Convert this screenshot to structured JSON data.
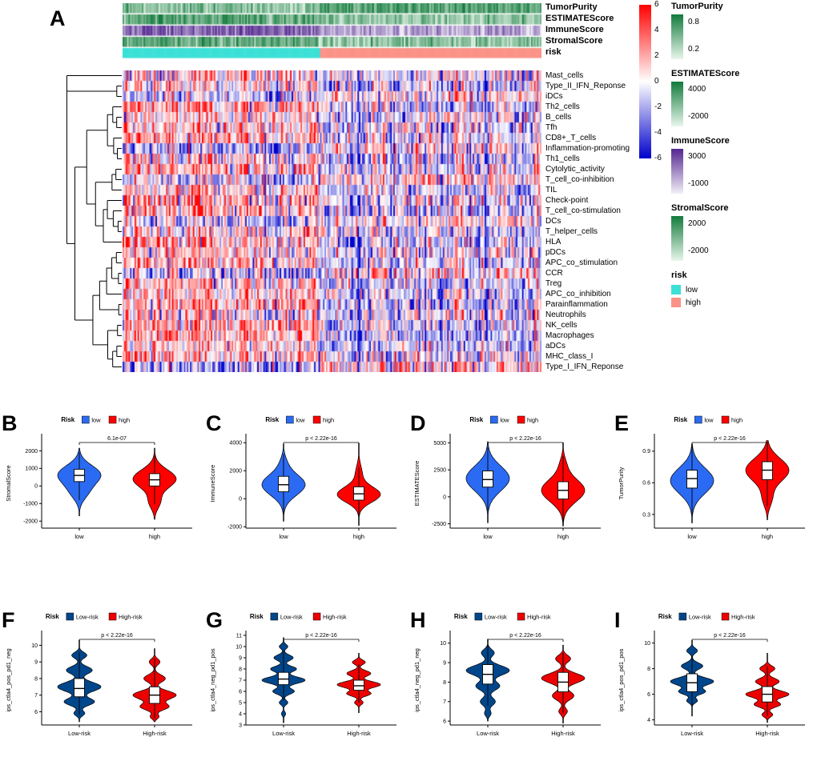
{
  "chart_data": [
    {
      "panel": "A",
      "type": "heatmap",
      "rows": [
        "Mast_cells",
        "Type_II_IFN_Reponse",
        "iDCs",
        "Th2_cells",
        "B_cells",
        "Tfh",
        "CD8+_T_cells",
        "Inflammation-promoting",
        "Th1_cells",
        "Cytolytic_activity",
        "T_cell_co-inhibition",
        "TIL",
        "Check-point",
        "T_cell_co-stimulation",
        "DCs",
        "T_helper_cells",
        "HLA",
        "pDCs",
        "APC_co_stimulation",
        "CCR",
        "Treg",
        "APC_co_inhibition",
        "Parainflammation",
        "Neutrophils",
        "NK_cells",
        "Macrophages",
        "aDCs",
        "MHC_class_I",
        "Type_I_IFN_Reponse"
      ],
      "annotation_rows": [
        "TumorPurity",
        "ESTIMATEScore",
        "ImmuneScore",
        "StromalScore",
        "risk"
      ],
      "value_scale": {
        "min": -6,
        "max": 6,
        "ticks": [
          6,
          4,
          2,
          0,
          -2,
          -4,
          -6
        ],
        "colors": {
          "high": "#FF0000",
          "mid": "#FFFFFF",
          "low": "#0000CC"
        }
      },
      "risk_split": 0.47,
      "risk_colors": {
        "low": "#3BE0D6",
        "high": "#FB9287"
      },
      "legends": [
        {
          "title": "TumorPurity",
          "type": "gradient",
          "labels": [
            "0.8",
            "0.2"
          ],
          "colors": [
            "#137B3C",
            "#E8F6EC"
          ]
        },
        {
          "title": "ESTIMATEScore",
          "type": "gradient",
          "labels": [
            "4000",
            "-2000"
          ],
          "colors": [
            "#137B3C",
            "#E8F6EC"
          ]
        },
        {
          "title": "ImmuneScore",
          "type": "gradient",
          "labels": [
            "3000",
            "-1000"
          ],
          "colors": [
            "#54278F",
            "#F1EFF8"
          ]
        },
        {
          "title": "StromalScore",
          "type": "gradient",
          "labels": [
            "2000",
            "-2000"
          ],
          "colors": [
            "#137B3C",
            "#E8F6EC"
          ]
        },
        {
          "title": "risk",
          "type": "categorical",
          "items": [
            {
              "label": "low",
              "color": "#3BE0D6"
            },
            {
              "label": "high",
              "color": "#FB9287"
            }
          ]
        }
      ]
    },
    {
      "panel": "B",
      "type": "violin",
      "ylabel": "StromalScore",
      "categories": [
        "low",
        "high"
      ],
      "p_label": "6.1e-07",
      "ylim": [
        -2400,
        2700
      ],
      "yticks": [
        2000,
        1000,
        0,
        -1000,
        -2000
      ],
      "legend": {
        "title": "Risk",
        "items": [
          {
            "label": "low",
            "color": "#2B6BF3"
          },
          {
            "label": "high",
            "color": "#FF0000"
          }
        ]
      },
      "series": [
        {
          "name": "low",
          "color": "#2B6BF3",
          "range": [
            -1700,
            2150
          ],
          "bumps": [
            {
              "c": 650,
              "s": 520,
              "w": 1
            },
            {
              "c": -350,
              "s": 450,
              "w": 0.35
            }
          ],
          "box": {
            "q1": 250,
            "med": 600,
            "q3": 950,
            "wlo": -800,
            "whi": 1950
          }
        },
        {
          "name": "high",
          "color": "#FF0000",
          "range": [
            -1900,
            2150
          ],
          "bumps": [
            {
              "c": 400,
              "s": 520,
              "w": 1
            },
            {
              "c": -900,
              "s": 400,
              "w": 0.25
            }
          ],
          "box": {
            "q1": 0,
            "med": 350,
            "q3": 700,
            "wlo": -1050,
            "whi": 1750
          }
        }
      ]
    },
    {
      "panel": "C",
      "type": "violin",
      "ylabel": "ImmuneScore",
      "categories": [
        "low",
        "high"
      ],
      "p_label": "p < 2.22e-16",
      "ylim": [
        -2100,
        4300
      ],
      "yticks": [
        4000,
        2000,
        0,
        -2000
      ],
      "legend": {
        "title": "Risk",
        "items": [
          {
            "label": "low",
            "color": "#2B6BF3"
          },
          {
            "label": "high",
            "color": "#FF0000"
          }
        ]
      },
      "series": [
        {
          "name": "low",
          "color": "#2B6BF3",
          "range": [
            -1600,
            3900
          ],
          "bumps": [
            {
              "c": 1000,
              "s": 750,
              "w": 1
            },
            {
              "c": 2600,
              "s": 500,
              "w": 0.1
            }
          ],
          "box": {
            "q1": 500,
            "med": 1000,
            "q3": 1600,
            "wlo": -1100,
            "whi": 3200
          }
        },
        {
          "name": "high",
          "color": "#FF0000",
          "range": [
            -1900,
            3950
          ],
          "bumps": [
            {
              "c": 300,
              "s": 550,
              "w": 1
            },
            {
              "c": 1800,
              "s": 600,
              "w": 0.15
            }
          ],
          "box": {
            "q1": -100,
            "med": 350,
            "q3": 850,
            "wlo": -1500,
            "whi": 2250
          }
        }
      ]
    },
    {
      "panel": "D",
      "type": "violin",
      "ylabel": "ESTIMATEScore",
      "categories": [
        "low",
        "high"
      ],
      "p_label": "p < 2.22e-16",
      "ylim": [
        -2900,
        5400
      ],
      "yticks": [
        5000,
        2500,
        0,
        -2500
      ],
      "legend": {
        "title": "Risk",
        "items": [
          {
            "label": "low",
            "color": "#2B6BF3"
          },
          {
            "label": "high",
            "color": "#FF0000"
          }
        ]
      },
      "series": [
        {
          "name": "low",
          "color": "#2B6BF3",
          "range": [
            -2400,
            5100
          ],
          "bumps": [
            {
              "c": 1700,
              "s": 1150,
              "w": 1
            }
          ],
          "box": {
            "q1": 900,
            "med": 1600,
            "q3": 2400,
            "wlo": -1300,
            "whi": 4600
          }
        },
        {
          "name": "high",
          "color": "#FF0000",
          "range": [
            -2700,
            5000
          ],
          "bumps": [
            {
              "c": 600,
              "s": 1050,
              "w": 1
            },
            {
              "c": 3000,
              "s": 700,
              "w": 0.12
            }
          ],
          "box": {
            "q1": -200,
            "med": 600,
            "q3": 1400,
            "wlo": -2500,
            "whi": 3800
          }
        }
      ]
    },
    {
      "panel": "E",
      "type": "violin",
      "ylabel": "TumorPurity",
      "categories": [
        "low",
        "high"
      ],
      "p_label": "p < 2.22e-16",
      "ylim": [
        0.17,
        1.02
      ],
      "yticks": [
        0.9,
        0.6,
        0.3
      ],
      "legend": {
        "title": "Risk",
        "items": [
          {
            "label": "low",
            "color": "#2B6BF3"
          },
          {
            "label": "high",
            "color": "#FF0000"
          }
        ]
      },
      "series": [
        {
          "name": "low",
          "color": "#2B6BF3",
          "range": [
            0.22,
            0.97
          ],
          "bumps": [
            {
              "c": 0.62,
              "s": 0.12,
              "w": 1
            }
          ],
          "box": {
            "q1": 0.55,
            "med": 0.64,
            "q3": 0.72,
            "wlo": 0.3,
            "whi": 0.95
          }
        },
        {
          "name": "high",
          "color": "#FF0000",
          "range": [
            0.25,
            1.0
          ],
          "bumps": [
            {
              "c": 0.72,
              "s": 0.11,
              "w": 1
            },
            {
              "c": 0.45,
              "s": 0.08,
              "w": 0.2
            }
          ],
          "box": {
            "q1": 0.63,
            "med": 0.72,
            "q3": 0.8,
            "wlo": 0.38,
            "whi": 0.99
          }
        }
      ]
    },
    {
      "panel": "F",
      "type": "violin",
      "ylabel": "ips_ctla4_pos_pd1_neg",
      "categories": [
        "Low-risk",
        "High-risk"
      ],
      "p_label": "p < 2.22e-16",
      "ylim": [
        5.2,
        10.6
      ],
      "yticks": [
        10,
        9,
        8,
        7,
        6
      ],
      "legend": {
        "title": "Risk",
        "items": [
          {
            "label": "Low-risk",
            "color": "#00468B"
          },
          {
            "label": "High-risk",
            "color": "#ED0000"
          }
        ]
      },
      "series": [
        {
          "name": "Low-risk",
          "color": "#00468B",
          "range": [
            5.4,
            10.3
          ],
          "bumps": [
            {
              "c": 9.4,
              "s": 0.18,
              "w": 0.35
            },
            {
              "c": 8.5,
              "s": 0.22,
              "w": 0.6
            },
            {
              "c": 7.5,
              "s": 0.28,
              "w": 1
            },
            {
              "c": 6.6,
              "s": 0.22,
              "w": 0.7
            },
            {
              "c": 5.9,
              "s": 0.15,
              "w": 0.25
            }
          ],
          "box": {
            "q1": 6.9,
            "med": 7.4,
            "q3": 8.0,
            "wlo": 5.8,
            "whi": 9.6
          }
        },
        {
          "name": "High-risk",
          "color": "#ED0000",
          "range": [
            5.4,
            9.8
          ],
          "bumps": [
            {
              "c": 9.0,
              "s": 0.18,
              "w": 0.25
            },
            {
              "c": 8.0,
              "s": 0.22,
              "w": 0.5
            },
            {
              "c": 7.0,
              "s": 0.26,
              "w": 1
            },
            {
              "c": 6.3,
              "s": 0.2,
              "w": 0.65
            },
            {
              "c": 5.7,
              "s": 0.14,
              "w": 0.2
            }
          ],
          "box": {
            "q1": 6.5,
            "med": 7.0,
            "q3": 7.5,
            "wlo": 5.6,
            "whi": 9.2
          }
        }
      ]
    },
    {
      "panel": "G",
      "type": "violin",
      "ylabel": "ips_ctla4_neg_pd1_pos",
      "categories": [
        "Low-risk",
        "High-risk"
      ],
      "p_label": "p < 2.22e-16",
      "ylim": [
        3,
        11
      ],
      "yticks": [
        11,
        10,
        9,
        8,
        7,
        6,
        5,
        4,
        3
      ],
      "legend": {
        "title": "Risk",
        "items": [
          {
            "label": "Low-risk",
            "color": "#00468B"
          },
          {
            "label": "High-risk",
            "color": "#ED0000"
          }
        ]
      },
      "series": [
        {
          "name": "Low-risk",
          "color": "#00468B",
          "range": [
            3.2,
            10.8
          ],
          "bumps": [
            {
              "c": 10,
              "s": 0.2,
              "w": 0.2
            },
            {
              "c": 9,
              "s": 0.25,
              "w": 0.45
            },
            {
              "c": 8,
              "s": 0.25,
              "w": 0.6
            },
            {
              "c": 7,
              "s": 0.3,
              "w": 1
            },
            {
              "c": 6,
              "s": 0.25,
              "w": 0.5
            },
            {
              "c": 5,
              "s": 0.2,
              "w": 0.2
            },
            {
              "c": 4,
              "s": 0.18,
              "w": 0.1
            }
          ],
          "box": {
            "q1": 6.6,
            "med": 7.1,
            "q3": 7.7,
            "wlo": 5.2,
            "whi": 9.7
          }
        },
        {
          "name": "High-risk",
          "color": "#ED0000",
          "range": [
            4.1,
            9.4
          ],
          "bumps": [
            {
              "c": 8.6,
              "s": 0.2,
              "w": 0.3
            },
            {
              "c": 7.6,
              "s": 0.25,
              "w": 0.55
            },
            {
              "c": 6.6,
              "s": 0.28,
              "w": 1
            },
            {
              "c": 5.8,
              "s": 0.22,
              "w": 0.55
            },
            {
              "c": 5.0,
              "s": 0.18,
              "w": 0.2
            }
          ],
          "box": {
            "q1": 6.1,
            "med": 6.5,
            "q3": 7.0,
            "wlo": 5.0,
            "whi": 8.4
          }
        }
      ]
    },
    {
      "panel": "H",
      "type": "violin",
      "ylabel": "ips_ctla4_neg_pd1_neg",
      "categories": [
        "Low-risk",
        "High-risk"
      ],
      "p_label": "p < 2.22e-16",
      "ylim": [
        5.8,
        10.4
      ],
      "yticks": [
        10,
        9,
        8,
        7,
        6
      ],
      "legend": {
        "title": "Risk",
        "items": [
          {
            "label": "Low-risk",
            "color": "#00468B"
          },
          {
            "label": "High-risk",
            "color": "#ED0000"
          }
        ]
      },
      "series": [
        {
          "name": "Low-risk",
          "color": "#00468B",
          "range": [
            6.0,
            10.2
          ],
          "bumps": [
            {
              "c": 9.5,
              "s": 0.18,
              "w": 0.3
            },
            {
              "c": 8.6,
              "s": 0.25,
              "w": 1
            },
            {
              "c": 7.8,
              "s": 0.22,
              "w": 0.55
            },
            {
              "c": 7.0,
              "s": 0.2,
              "w": 0.35
            },
            {
              "c": 6.4,
              "s": 0.15,
              "w": 0.15
            }
          ],
          "box": {
            "q1": 7.9,
            "med": 8.4,
            "q3": 8.9,
            "wlo": 6.8,
            "whi": 9.9
          }
        },
        {
          "name": "High-risk",
          "color": "#ED0000",
          "range": [
            5.9,
            9.9
          ],
          "bumps": [
            {
              "c": 9.2,
              "s": 0.18,
              "w": 0.35
            },
            {
              "c": 8.2,
              "s": 0.25,
              "w": 1
            },
            {
              "c": 7.3,
              "s": 0.22,
              "w": 0.5
            },
            {
              "c": 6.5,
              "s": 0.16,
              "w": 0.2
            }
          ],
          "box": {
            "q1": 7.5,
            "med": 8.0,
            "q3": 8.5,
            "wlo": 6.4,
            "whi": 9.5
          }
        }
      ]
    },
    {
      "panel": "I",
      "type": "violin",
      "ylabel": "ips_ctla4_pos_pd1_pos",
      "categories": [
        "Low-risk",
        "High-risk"
      ],
      "p_label": "p < 2.22e-16",
      "ylim": [
        3.6,
        10.6
      ],
      "yticks": [
        10,
        8,
        6,
        4
      ],
      "legend": {
        "title": "Risk",
        "items": [
          {
            "label": "Low-risk",
            "color": "#00468B"
          },
          {
            "label": "High-risk",
            "color": "#ED0000"
          }
        ]
      },
      "series": [
        {
          "name": "Low-risk",
          "color": "#00468B",
          "range": [
            4.3,
            10.2
          ],
          "bumps": [
            {
              "c": 9.4,
              "s": 0.2,
              "w": 0.25
            },
            {
              "c": 8.2,
              "s": 0.25,
              "w": 0.5
            },
            {
              "c": 7.0,
              "s": 0.3,
              "w": 1
            },
            {
              "c": 6.2,
              "s": 0.22,
              "w": 0.6
            },
            {
              "c": 5.5,
              "s": 0.18,
              "w": 0.25
            }
          ],
          "box": {
            "q1": 6.2,
            "med": 6.9,
            "q3": 7.6,
            "wlo": 5.0,
            "whi": 9.0
          }
        },
        {
          "name": "High-risk",
          "color": "#ED0000",
          "range": [
            3.8,
            9.2
          ],
          "bumps": [
            {
              "c": 8.0,
              "s": 0.22,
              "w": 0.35
            },
            {
              "c": 7.0,
              "s": 0.25,
              "w": 0.55
            },
            {
              "c": 6.0,
              "s": 0.28,
              "w": 1
            },
            {
              "c": 5.2,
              "s": 0.22,
              "w": 0.6
            },
            {
              "c": 4.4,
              "s": 0.18,
              "w": 0.25
            }
          ],
          "box": {
            "q1": 5.4,
            "med": 6.0,
            "q3": 6.6,
            "wlo": 4.3,
            "whi": 8.2
          }
        }
      ]
    }
  ]
}
